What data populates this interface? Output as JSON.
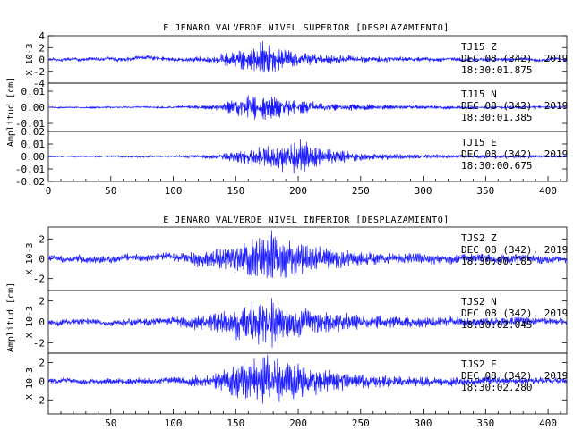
{
  "chart_data": [
    {
      "type": "line",
      "title": "E JENARO VALVERDE NIVEL SUPERIOR [DESPLAZAMIENTO]",
      "ylabel": "Amplitud [cm]",
      "xlim": [
        0,
        415
      ],
      "x_ticks": [
        0,
        50,
        100,
        150,
        200,
        250,
        300,
        350,
        400
      ],
      "line_color": "#1a1aff",
      "panels": [
        {
          "station_line": "TJ15   Z",
          "date_line": "DEC 08 (342), 2019",
          "time_line": "18:30:01.875",
          "scale_label": "X 10-3",
          "ylim": [
            -4,
            4
          ],
          "y_ticks": [
            -4,
            -2,
            0,
            2,
            4
          ],
          "y_tick_labels": [
            "-4",
            "-2",
            "0",
            "2",
            "4"
          ],
          "envelope": [
            [
              0,
              0.25
            ],
            [
              40,
              0.3
            ],
            [
              80,
              0.4
            ],
            [
              110,
              0.35
            ],
            [
              130,
              0.6
            ],
            [
              145,
              1.4
            ],
            [
              160,
              1.9
            ],
            [
              172,
              3.8
            ],
            [
              185,
              2.2
            ],
            [
              200,
              1.2
            ],
            [
              230,
              0.8
            ],
            [
              260,
              0.55
            ],
            [
              300,
              0.4
            ],
            [
              350,
              0.3
            ],
            [
              415,
              0.25
            ]
          ],
          "carrier_hz": 1.1,
          "drift": 0.35,
          "seed": 11
        },
        {
          "station_line": "TJ15   N",
          "date_line": "DEC 08 (342), 2019",
          "time_line": "18:30:01.385",
          "scale_label": "",
          "ylim": [
            -0.015,
            0.015
          ],
          "y_ticks": [
            -0.01,
            0,
            0.01
          ],
          "y_tick_labels": [
            "-0.01",
            "0.00",
            "0.01"
          ],
          "envelope": [
            [
              0,
              0.0004
            ],
            [
              100,
              0.0006
            ],
            [
              130,
              0.0015
            ],
            [
              150,
              0.006
            ],
            [
              165,
              0.009
            ],
            [
              175,
              0.0085
            ],
            [
              190,
              0.006
            ],
            [
              210,
              0.004
            ],
            [
              240,
              0.0025
            ],
            [
              280,
              0.0015
            ],
            [
              330,
              0.001
            ],
            [
              415,
              0.0006
            ]
          ],
          "carrier_hz": 1.3,
          "drift": 0.0004,
          "seed": 23
        },
        {
          "station_line": "TJ15   E",
          "date_line": "DEC 08 (342), 2019",
          "time_line": "18:30:00.675",
          "scale_label": "",
          "ylim": [
            -0.02,
            0.02
          ],
          "y_ticks": [
            -0.02,
            -0.01,
            0,
            0.01,
            0.02
          ],
          "y_tick_labels": [
            "-0.02",
            "-0.01",
            "0.00",
            "0.01",
            "0.02"
          ],
          "envelope": [
            [
              0,
              0.0005
            ],
            [
              100,
              0.0008
            ],
            [
              135,
              0.002
            ],
            [
              150,
              0.005
            ],
            [
              170,
              0.009
            ],
            [
              185,
              0.012
            ],
            [
              198,
              0.017
            ],
            [
              210,
              0.011
            ],
            [
              230,
              0.006
            ],
            [
              260,
              0.003
            ],
            [
              300,
              0.0018
            ],
            [
              350,
              0.0012
            ],
            [
              415,
              0.0008
            ]
          ],
          "carrier_hz": 1.0,
          "drift": 0.0005,
          "seed": 37
        }
      ]
    },
    {
      "type": "line",
      "title": "E JENARO VALVERDE NIVEL INFERIOR [DESPLAZAMIENTO]",
      "ylabel": "Amplitud [cm]",
      "xlim": [
        0,
        415
      ],
      "x_ticks": [
        50,
        100,
        150,
        200,
        250,
        300,
        350,
        400
      ],
      "line_color": "#1a1aff",
      "panels": [
        {
          "station_line": "TJS2   Z",
          "date_line": "DEC 08 (342), 2019",
          "time_line": "18:30:00.185",
          "scale_label": "X 10-3",
          "ylim": [
            -3.2,
            3.2
          ],
          "y_ticks": [
            -2,
            0,
            2
          ],
          "y_tick_labels": [
            "-2",
            "0",
            "2"
          ],
          "envelope": [
            [
              0,
              0.35
            ],
            [
              60,
              0.4
            ],
            [
              100,
              0.45
            ],
            [
              130,
              0.9
            ],
            [
              150,
              1.6
            ],
            [
              165,
              2.4
            ],
            [
              178,
              3.1
            ],
            [
              190,
              2.1
            ],
            [
              210,
              1.5
            ],
            [
              240,
              0.9
            ],
            [
              280,
              0.6
            ],
            [
              330,
              0.5
            ],
            [
              380,
              0.45
            ],
            [
              415,
              0.35
            ]
          ],
          "carrier_hz": 0.9,
          "drift": 0.4,
          "seed": 51
        },
        {
          "station_line": "TJS2   N",
          "date_line": "DEC 08 (342), 2019",
          "time_line": "18:30:02.045",
          "scale_label": "X 10-3",
          "ylim": [
            -3.0,
            3.0
          ],
          "y_ticks": [
            -2,
            0,
            2
          ],
          "y_tick_labels": [
            "-2",
            "0",
            "2"
          ],
          "envelope": [
            [
              0,
              0.3
            ],
            [
              60,
              0.35
            ],
            [
              100,
              0.45
            ],
            [
              130,
              0.9
            ],
            [
              150,
              1.8
            ],
            [
              165,
              2.3
            ],
            [
              178,
              2.7
            ],
            [
              192,
              2.0
            ],
            [
              210,
              1.4
            ],
            [
              240,
              0.9
            ],
            [
              280,
              0.55
            ],
            [
              330,
              0.45
            ],
            [
              415,
              0.35
            ]
          ],
          "carrier_hz": 0.95,
          "drift": 0.3,
          "seed": 67
        },
        {
          "station_line": "TJS2   E",
          "date_line": "DEC 08 (342), 2019",
          "time_line": "18:30:02.280",
          "scale_label": "X 10-3",
          "ylim": [
            -3.5,
            3.0
          ],
          "y_ticks": [
            -2,
            0,
            2
          ],
          "y_tick_labels": [
            "-2",
            "0",
            "2"
          ],
          "envelope": [
            [
              0,
              0.3
            ],
            [
              60,
              0.35
            ],
            [
              100,
              0.45
            ],
            [
              130,
              0.9
            ],
            [
              150,
              1.8
            ],
            [
              165,
              2.6
            ],
            [
              175,
              3.0
            ],
            [
              190,
              2.4
            ],
            [
              210,
              1.6
            ],
            [
              240,
              1.0
            ],
            [
              280,
              0.6
            ],
            [
              330,
              0.5
            ],
            [
              415,
              0.35
            ]
          ],
          "carrier_hz": 1.0,
          "drift": 0.3,
          "seed": 83
        }
      ]
    }
  ]
}
